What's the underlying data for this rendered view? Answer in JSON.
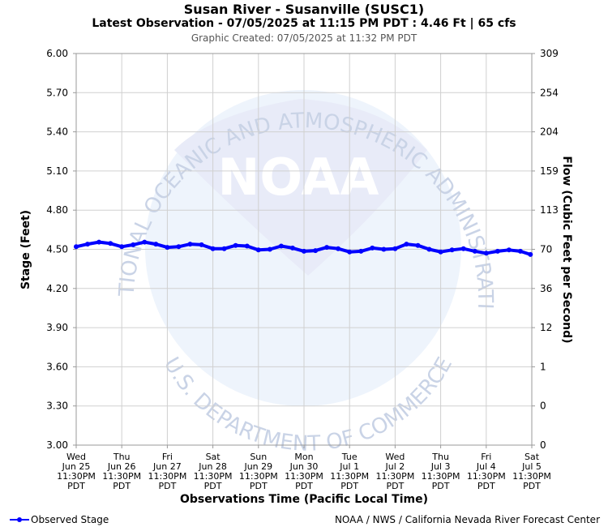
{
  "header": {
    "title": "Susan River - Susanville (SUSC1)",
    "subtitle": "Latest Observation - 07/05/2025 at 11:15 PM PDT : 4.46 Ft | 65 cfs",
    "created": "Graphic Created: 07/05/2025 at 11:32 PM PDT"
  },
  "legend": {
    "label": "Observed Stage",
    "color": "#0000ff"
  },
  "credit": "NOAA / NWS / California Nevada River Forecast Center",
  "watermark": {
    "top_text": "NATIONAL OCEANIC AND ATMOSPHERIC ADMINISTRATION",
    "bottom_text": "U.S. DEPARTMENT OF COMMERCE",
    "logo_text": "NOAA"
  },
  "chart_data": {
    "type": "line",
    "xlabel": "Observations Time (Pacific Local Time)",
    "ylabel": "Stage (Feet)",
    "y2label": "Flow (Cubic Feet per Second)",
    "ylim": [
      3.0,
      6.0
    ],
    "yticks": [
      "3.00",
      "3.30",
      "3.60",
      "3.90",
      "4.20",
      "4.50",
      "4.80",
      "5.10",
      "5.40",
      "5.70",
      "6.00"
    ],
    "y2ticks": [
      "0",
      "0",
      "1",
      "12",
      "36",
      "70",
      "113",
      "159",
      "204",
      "254",
      "309"
    ],
    "xlim_days": [
      0,
      10
    ],
    "xticks": [
      [
        "Wed",
        "Jun 25",
        "11:30PM",
        "PDT"
      ],
      [
        "Thu",
        "Jun 26",
        "11:30PM",
        "PDT"
      ],
      [
        "Fri",
        "Jun 27",
        "11:30PM",
        "PDT"
      ],
      [
        "Sat",
        "Jun 28",
        "11:30PM",
        "PDT"
      ],
      [
        "Sun",
        "Jun 29",
        "11:30PM",
        "PDT"
      ],
      [
        "Mon",
        "Jun 30",
        "11:30PM",
        "PDT"
      ],
      [
        "Tue",
        "Jul 1",
        "11:30PM",
        "PDT"
      ],
      [
        "Wed",
        "Jul 2",
        "11:30PM",
        "PDT"
      ],
      [
        "Thu",
        "Jul 3",
        "11:30PM",
        "PDT"
      ],
      [
        "Fri",
        "Jul 4",
        "11:30PM",
        "PDT"
      ],
      [
        "Sat",
        "Jul 5",
        "11:30PM",
        "PDT"
      ]
    ],
    "grid": true,
    "series": [
      {
        "name": "Observed Stage",
        "color": "#0000ff",
        "points": [
          [
            0.0,
            4.52
          ],
          [
            0.25,
            4.54
          ],
          [
            0.5,
            4.555
          ],
          [
            0.75,
            4.545
          ],
          [
            1.0,
            4.52
          ],
          [
            1.25,
            4.535
          ],
          [
            1.5,
            4.555
          ],
          [
            1.75,
            4.54
          ],
          [
            2.0,
            4.515
          ],
          [
            2.25,
            4.52
          ],
          [
            2.5,
            4.54
          ],
          [
            2.75,
            4.535
          ],
          [
            3.0,
            4.505
          ],
          [
            3.25,
            4.505
          ],
          [
            3.5,
            4.53
          ],
          [
            3.75,
            4.525
          ],
          [
            4.0,
            4.495
          ],
          [
            4.25,
            4.5
          ],
          [
            4.5,
            4.525
          ],
          [
            4.75,
            4.51
          ],
          [
            5.0,
            4.485
          ],
          [
            5.25,
            4.49
          ],
          [
            5.5,
            4.515
          ],
          [
            5.75,
            4.505
          ],
          [
            6.0,
            4.48
          ],
          [
            6.25,
            4.485
          ],
          [
            6.5,
            4.51
          ],
          [
            6.75,
            4.5
          ],
          [
            7.0,
            4.505
          ],
          [
            7.25,
            4.54
          ],
          [
            7.5,
            4.53
          ],
          [
            7.75,
            4.5
          ],
          [
            8.0,
            4.48
          ],
          [
            8.25,
            4.495
          ],
          [
            8.5,
            4.505
          ],
          [
            8.75,
            4.485
          ],
          [
            9.0,
            4.47
          ],
          [
            9.25,
            4.485
          ],
          [
            9.5,
            4.495
          ],
          [
            9.75,
            4.485
          ],
          [
            9.97,
            4.46
          ]
        ]
      }
    ]
  }
}
